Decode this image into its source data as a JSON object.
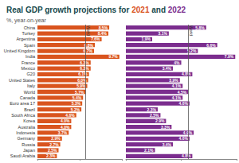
{
  "chart_data": {
    "type": "bar",
    "orientation": "horizontal",
    "title": "Real GDP growth projections for 2021 and 2022",
    "subtitle": "%, year-on-year",
    "categories": [
      "China",
      "Turkey",
      "Argentina",
      "Spain",
      "United Kingdom",
      "India",
      "France",
      "Mexico",
      "G20",
      "United States",
      "Italy",
      "World",
      "Canada",
      "Euro area 17",
      "Brazil",
      "South Africa",
      "Korea",
      "Australia",
      "Indonesia",
      "Germany",
      "Russia",
      "Japan",
      "Saudi Arabia"
    ],
    "xlim": [
      0,
      10
    ],
    "xticks": [
      0,
      5,
      10
    ],
    "x2lim": [
      0,
      8
    ],
    "x2ticks": [
      0,
      4,
      8
    ],
    "tick_labels": "y",
    "grid": false,
    "data_labels": true,
    "annotations": [
      "World"
    ],
    "series": [
      {
        "name": "2021",
        "color": "#d9541e",
        "axis": "x",
        "values": [
          8.5,
          8.4,
          7.6,
          6.8,
          6.7,
          9.7,
          6.3,
          6.3,
          6.1,
          6.0,
          5.9,
          5.7,
          5.4,
          5.3,
          5.2,
          4.6,
          4.0,
          4.0,
          3.7,
          2.9,
          2.7,
          2.5,
          2.3
        ],
        "value_labels": [
          "8.5%",
          "8.4%",
          "7.6%",
          "6.8%",
          "6.7%",
          "9.7%",
          "6.3%",
          "6.3%",
          "6.1%",
          "6.0%",
          "5.9%",
          "5.7%",
          "5.4%",
          "5.3%",
          "5.2%",
          "4.6%",
          "4.0%",
          "4.0%",
          "3.7%",
          "2.9%",
          "2.7%",
          "2.5%",
          "2.3%"
        ]
      },
      {
        "name": "2022",
        "color": "#7b2d8e",
        "axis": "x2",
        "values": [
          5.8,
          3.1,
          1.9,
          6.6,
          5.2,
          7.9,
          4.0,
          3.4,
          4.8,
          3.9,
          4.1,
          4.5,
          4.1,
          4.6,
          2.3,
          2.5,
          2.9,
          3.3,
          4.9,
          4.6,
          3.4,
          2.1,
          4.8
        ],
        "value_labels": [
          "5.8%",
          "3.1%",
          "1.9%",
          "6.6%",
          "5.2%",
          "7.9%",
          "4%",
          "3.4%",
          "4.8%",
          "3.9%",
          "4.1%",
          "4.5%",
          "4.1%",
          "4.6%",
          "2.3%",
          "2.5%",
          "2.9%",
          "3.3%",
          "4.9%",
          "4.6%",
          "3.4%",
          "2.1%",
          "4.8%"
        ]
      }
    ]
  }
}
